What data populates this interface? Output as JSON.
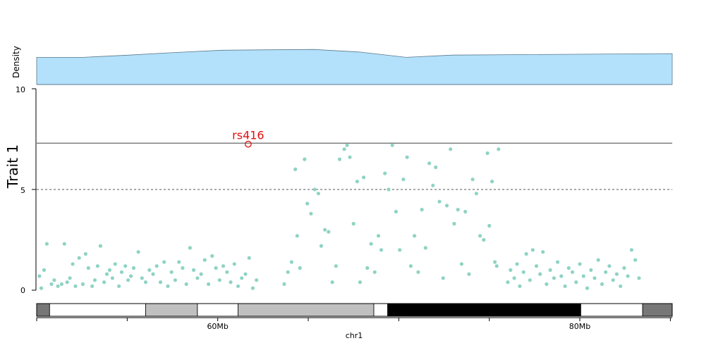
{
  "chart_data": {
    "type": "scatter",
    "density": {
      "ylabel": "Density",
      "x": [
        45,
        50,
        55,
        60,
        65,
        70,
        75,
        80,
        85,
        90,
        94
      ],
      "values": [
        0.72,
        0.72,
        0.78,
        0.85,
        0.91,
        0.92,
        0.93,
        0.86,
        0.72,
        0.78,
        0.82
      ],
      "ylim": [
        0,
        1.12
      ],
      "fill_color": "#b3e0fa",
      "stroke_color": "#5b7a8c"
    },
    "manhattan": {
      "ylabel": "Trait 1",
      "ylim": [
        0,
        10
      ],
      "yticks": [
        "0",
        "5",
        "10"
      ],
      "genomewide_line": 7.3,
      "suggestive_line": 5,
      "point_color": "#8fd3c4",
      "lead_snp": {
        "label": "rs416",
        "x": 67.9,
        "y": 7.25,
        "color": "#e01010"
      },
      "points": [
        [
          45.3,
          0.7
        ],
        [
          45.5,
          0.1
        ],
        [
          45.8,
          1.0
        ],
        [
          46.1,
          2.3
        ],
        [
          46.6,
          0.3
        ],
        [
          46.9,
          0.5
        ],
        [
          47.3,
          0.2
        ],
        [
          47.7,
          0.3
        ],
        [
          48.0,
          2.3
        ],
        [
          48.3,
          0.4
        ],
        [
          48.6,
          0.6
        ],
        [
          48.9,
          1.3
        ],
        [
          49.2,
          0.2
        ],
        [
          49.6,
          1.6
        ],
        [
          50.0,
          0.3
        ],
        [
          50.3,
          1.8
        ],
        [
          50.6,
          1.1
        ],
        [
          51.0,
          0.2
        ],
        [
          51.3,
          0.5
        ],
        [
          51.6,
          1.2
        ],
        [
          51.9,
          2.2
        ],
        [
          52.3,
          0.4
        ],
        [
          52.6,
          0.8
        ],
        [
          52.9,
          1.0
        ],
        [
          53.2,
          0.6
        ],
        [
          53.5,
          1.3
        ],
        [
          53.9,
          0.2
        ],
        [
          54.2,
          0.9
        ],
        [
          54.6,
          1.2
        ],
        [
          54.9,
          0.5
        ],
        [
          55.2,
          0.7
        ],
        [
          55.5,
          1.1
        ],
        [
          56.0,
          1.9
        ],
        [
          56.4,
          0.6
        ],
        [
          56.8,
          0.4
        ],
        [
          57.2,
          1.0
        ],
        [
          57.6,
          0.8
        ],
        [
          58.0,
          1.2
        ],
        [
          58.4,
          0.4
        ],
        [
          58.8,
          1.4
        ],
        [
          59.2,
          0.2
        ],
        [
          59.6,
          0.9
        ],
        [
          60.0,
          0.5
        ],
        [
          60.4,
          1.4
        ],
        [
          60.8,
          1.1
        ],
        [
          61.2,
          0.3
        ],
        [
          61.6,
          2.1
        ],
        [
          62.0,
          1.0
        ],
        [
          62.4,
          0.6
        ],
        [
          62.8,
          0.8
        ],
        [
          63.2,
          1.5
        ],
        [
          63.6,
          0.3
        ],
        [
          64.0,
          1.7
        ],
        [
          64.4,
          1.1
        ],
        [
          64.8,
          0.5
        ],
        [
          65.2,
          1.2
        ],
        [
          65.6,
          0.9
        ],
        [
          66.0,
          0.4
        ],
        [
          66.4,
          1.3
        ],
        [
          66.8,
          0.2
        ],
        [
          67.2,
          0.6
        ],
        [
          67.6,
          0.8
        ],
        [
          68.0,
          1.6
        ],
        [
          68.4,
          0.1
        ],
        [
          68.8,
          0.5
        ],
        [
          71.8,
          0.3
        ],
        [
          72.2,
          0.9
        ],
        [
          72.6,
          1.4
        ],
        [
          73.0,
          6.0
        ],
        [
          73.2,
          2.7
        ],
        [
          73.5,
          1.1
        ],
        [
          74.0,
          6.5
        ],
        [
          74.3,
          4.3
        ],
        [
          74.7,
          3.8
        ],
        [
          75.1,
          5.0
        ],
        [
          75.5,
          4.8
        ],
        [
          75.8,
          2.2
        ],
        [
          76.2,
          3.0
        ],
        [
          76.6,
          2.9
        ],
        [
          77.0,
          0.4
        ],
        [
          77.4,
          1.2
        ],
        [
          77.8,
          6.5
        ],
        [
          78.3,
          7.0
        ],
        [
          78.6,
          7.2
        ],
        [
          78.9,
          6.6
        ],
        [
          79.3,
          3.3
        ],
        [
          79.7,
          5.4
        ],
        [
          80.0,
          0.4
        ],
        [
          80.4,
          5.6
        ],
        [
          80.8,
          1.1
        ],
        [
          81.2,
          2.3
        ],
        [
          81.6,
          0.9
        ],
        [
          82.0,
          2.7
        ],
        [
          82.3,
          2.0
        ],
        [
          82.7,
          5.8
        ],
        [
          83.1,
          5.0
        ],
        [
          83.5,
          7.2
        ],
        [
          83.9,
          3.9
        ],
        [
          84.3,
          2.0
        ],
        [
          84.7,
          5.5
        ],
        [
          85.1,
          6.6
        ],
        [
          85.5,
          1.2
        ],
        [
          85.9,
          2.7
        ],
        [
          86.3,
          0.9
        ],
        [
          86.7,
          4.0
        ],
        [
          87.1,
          2.1
        ],
        [
          87.5,
          6.3
        ],
        [
          87.9,
          5.2
        ],
        [
          88.2,
          6.1
        ],
        [
          88.6,
          4.4
        ],
        [
          89.0,
          0.6
        ],
        [
          89.4,
          4.2
        ],
        [
          89.8,
          7.0
        ],
        [
          90.2,
          3.3
        ],
        [
          90.6,
          4.0
        ],
        [
          91.0,
          1.3
        ],
        [
          91.4,
          3.9
        ],
        [
          91.8,
          0.8
        ],
        [
          92.2,
          5.5
        ],
        [
          92.6,
          4.8
        ],
        [
          93.0,
          2.7
        ],
        [
          93.4,
          2.5
        ],
        [
          93.8,
          6.8
        ],
        [
          94.0,
          3.2
        ],
        [
          94.3,
          5.4
        ],
        [
          94.6,
          1.4
        ],
        [
          94.8,
          1.2
        ],
        [
          95.0,
          7.0
        ],
        [
          96.0,
          0.4
        ],
        [
          96.3,
          1.0
        ],
        [
          96.7,
          0.6
        ],
        [
          97.0,
          1.3
        ],
        [
          97.3,
          0.2
        ],
        [
          97.7,
          0.9
        ],
        [
          98.0,
          1.8
        ],
        [
          98.4,
          0.5
        ],
        [
          98.7,
          2.0
        ],
        [
          99.1,
          1.2
        ],
        [
          99.5,
          0.8
        ],
        [
          99.8,
          1.9
        ],
        [
          100.2,
          0.3
        ],
        [
          100.6,
          1.0
        ],
        [
          101.0,
          0.6
        ],
        [
          101.4,
          1.4
        ],
        [
          101.8,
          0.7
        ],
        [
          102.2,
          0.2
        ],
        [
          102.6,
          1.1
        ],
        [
          103.0,
          0.9
        ],
        [
          103.4,
          0.4
        ],
        [
          103.8,
          1.3
        ],
        [
          104.2,
          0.7
        ],
        [
          104.6,
          0.1
        ],
        [
          105.0,
          1.0
        ],
        [
          105.4,
          0.6
        ],
        [
          105.8,
          1.5
        ],
        [
          106.2,
          0.3
        ],
        [
          106.6,
          0.9
        ],
        [
          107.0,
          1.2
        ],
        [
          107.4,
          0.5
        ],
        [
          107.8,
          0.8
        ],
        [
          108.2,
          0.2
        ],
        [
          108.6,
          1.1
        ],
        [
          109.0,
          0.7
        ],
        [
          109.4,
          2.0
        ],
        [
          109.8,
          1.5
        ],
        [
          110.2,
          0.6
        ]
      ]
    },
    "ideogram": {
      "bands": [
        {
          "start": 45.0,
          "end": 46.4,
          "stain": "#777777"
        },
        {
          "start": 46.4,
          "end": 56.8,
          "stain": "#ffffff"
        },
        {
          "start": 56.8,
          "end": 62.4,
          "stain": "#c0c0c0"
        },
        {
          "start": 62.4,
          "end": 66.8,
          "stain": "#ffffff"
        },
        {
          "start": 66.8,
          "end": 81.5,
          "stain": "#c0c0c0"
        },
        {
          "start": 81.5,
          "end": 83.0,
          "stain": "#ffffff"
        },
        {
          "start": 83.0,
          "end": 103.9,
          "stain": "#000000"
        },
        {
          "start": 103.9,
          "end": 110.6,
          "stain": "#ffffff"
        },
        {
          "start": 110.6,
          "end": 113.8,
          "stain": "#777777"
        }
      ]
    },
    "xaxis": {
      "xlim": [
        45,
        113.8
      ],
      "tick_positions": [
        45,
        54.8,
        64.6,
        74.4,
        84.2,
        94.0,
        103.8,
        113.6
      ],
      "labeled_ticks": [
        {
          "x": 64.6,
          "label": "60Mb"
        },
        {
          "x": 103.8,
          "label": "80Mb"
        }
      ],
      "xlabel": "chr1"
    }
  }
}
